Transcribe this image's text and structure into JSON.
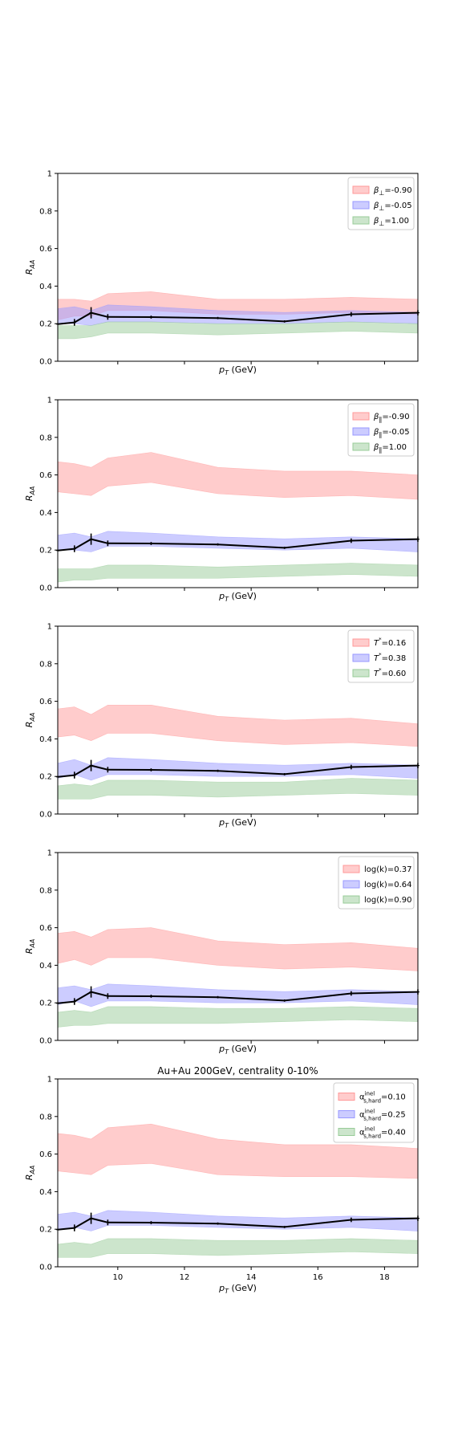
{
  "figure": {
    "title": "Au+Au 200GeV, centrality 0-10%",
    "xlabel": "p_T (GeV)",
    "ylabel": "R_AA"
  },
  "chart_data": [
    {
      "type": "area",
      "xlim": [
        8.2,
        19.0
      ],
      "ylim": [
        0.0,
        1.0
      ],
      "xticks": [
        10,
        12,
        14,
        16,
        18
      ],
      "show_xtick_labels": false,
      "yticks": [
        0.0,
        0.2,
        0.4,
        0.6,
        0.8,
        1.0
      ],
      "xlabel": "p_T (GeV)",
      "ylabel": "R_AA",
      "title": "",
      "legend": "top-right",
      "x": [
        8.2,
        8.7,
        9.2,
        9.7,
        11.0,
        13.0,
        15.0,
        17.0,
        19.0
      ],
      "data": {
        "name": "",
        "y": [
          0.198,
          0.207,
          0.258,
          0.236,
          0.235,
          0.23,
          0.212,
          0.25,
          0.258
        ],
        "yerr": [
          0.003,
          0.018,
          0.03,
          0.015,
          0.008,
          0.006,
          0.006,
          0.012,
          0.014
        ]
      },
      "series": [
        {
          "name": "β⊥=-0.90",
          "color": "#ff9999",
          "low": [
            0.22,
            0.24,
            0.24,
            0.27,
            0.27,
            0.25,
            0.25,
            0.26,
            0.25
          ],
          "high": [
            0.33,
            0.33,
            0.32,
            0.36,
            0.37,
            0.33,
            0.33,
            0.34,
            0.33
          ]
        },
        {
          "name": "β⊥=-0.05",
          "color": "#9999ff",
          "low": [
            0.2,
            0.2,
            0.19,
            0.21,
            0.21,
            0.2,
            0.2,
            0.21,
            0.2
          ],
          "high": [
            0.28,
            0.29,
            0.27,
            0.3,
            0.29,
            0.27,
            0.26,
            0.27,
            0.26
          ]
        },
        {
          "name": "β⊥=1.00",
          "color": "#99cc99",
          "low": [
            0.12,
            0.12,
            0.13,
            0.15,
            0.15,
            0.14,
            0.15,
            0.16,
            0.15
          ],
          "high": [
            0.19,
            0.19,
            0.19,
            0.21,
            0.21,
            0.2,
            0.2,
            0.21,
            0.2
          ]
        }
      ]
    },
    {
      "type": "area",
      "xlim": [
        8.2,
        19.0
      ],
      "ylim": [
        0.0,
        1.0
      ],
      "xticks": [
        10,
        12,
        14,
        16,
        18
      ],
      "show_xtick_labels": false,
      "yticks": [
        0.0,
        0.2,
        0.4,
        0.6,
        0.8,
        1.0
      ],
      "xlabel": "p_T (GeV)",
      "ylabel": "R_AA",
      "title": "",
      "legend": "top-right",
      "x": [
        8.2,
        8.7,
        9.2,
        9.7,
        11.0,
        13.0,
        15.0,
        17.0,
        19.0
      ],
      "data": {
        "name": "",
        "y": [
          0.198,
          0.207,
          0.258,
          0.236,
          0.235,
          0.23,
          0.212,
          0.25,
          0.258
        ],
        "yerr": [
          0.003,
          0.018,
          0.03,
          0.015,
          0.008,
          0.006,
          0.006,
          0.012,
          0.014
        ]
      },
      "series": [
        {
          "name": "β∥=-0.90",
          "color": "#ff9999",
          "low": [
            0.51,
            0.5,
            0.49,
            0.54,
            0.56,
            0.5,
            0.48,
            0.49,
            0.47
          ],
          "high": [
            0.67,
            0.66,
            0.64,
            0.69,
            0.72,
            0.64,
            0.62,
            0.62,
            0.6
          ]
        },
        {
          "name": "β∥=-0.05",
          "color": "#9999ff",
          "low": [
            0.2,
            0.2,
            0.19,
            0.22,
            0.22,
            0.21,
            0.2,
            0.21,
            0.19
          ],
          "high": [
            0.28,
            0.29,
            0.27,
            0.3,
            0.29,
            0.27,
            0.26,
            0.27,
            0.26
          ]
        },
        {
          "name": "β∥=1.00",
          "color": "#99cc99",
          "low": [
            0.03,
            0.04,
            0.04,
            0.05,
            0.05,
            0.05,
            0.06,
            0.07,
            0.06
          ],
          "high": [
            0.1,
            0.1,
            0.1,
            0.12,
            0.12,
            0.11,
            0.12,
            0.13,
            0.12
          ]
        }
      ]
    },
    {
      "type": "area",
      "xlim": [
        8.2,
        19.0
      ],
      "ylim": [
        0.0,
        1.0
      ],
      "xticks": [
        10,
        12,
        14,
        16,
        18
      ],
      "show_xtick_labels": false,
      "yticks": [
        0.0,
        0.2,
        0.4,
        0.6,
        0.8,
        1.0
      ],
      "xlabel": "p_T (GeV)",
      "ylabel": "R_AA",
      "title": "",
      "legend": "top-right",
      "x": [
        8.2,
        8.7,
        9.2,
        9.7,
        11.0,
        13.0,
        15.0,
        17.0,
        19.0
      ],
      "data": {
        "name": "",
        "y": [
          0.198,
          0.207,
          0.258,
          0.236,
          0.235,
          0.23,
          0.212,
          0.25,
          0.258
        ],
        "yerr": [
          0.003,
          0.018,
          0.03,
          0.015,
          0.008,
          0.006,
          0.006,
          0.012,
          0.014
        ]
      },
      "series": [
        {
          "name": "T*=0.16",
          "color": "#ff9999",
          "low": [
            0.41,
            0.42,
            0.39,
            0.43,
            0.43,
            0.39,
            0.37,
            0.38,
            0.36
          ],
          "high": [
            0.56,
            0.57,
            0.53,
            0.58,
            0.58,
            0.52,
            0.5,
            0.51,
            0.48
          ]
        },
        {
          "name": "T*=0.38",
          "color": "#9999ff",
          "low": [
            0.19,
            0.21,
            0.18,
            0.21,
            0.21,
            0.2,
            0.2,
            0.21,
            0.19
          ],
          "high": [
            0.27,
            0.29,
            0.26,
            0.3,
            0.29,
            0.27,
            0.26,
            0.27,
            0.26
          ]
        },
        {
          "name": "T*=0.60",
          "color": "#99cc99",
          "low": [
            0.08,
            0.08,
            0.08,
            0.1,
            0.1,
            0.09,
            0.1,
            0.11,
            0.1
          ],
          "high": [
            0.15,
            0.16,
            0.15,
            0.18,
            0.18,
            0.17,
            0.17,
            0.19,
            0.18
          ]
        }
      ]
    },
    {
      "type": "area",
      "xlim": [
        8.2,
        19.0
      ],
      "ylim": [
        0.0,
        1.0
      ],
      "xticks": [
        10,
        12,
        14,
        16,
        18
      ],
      "show_xtick_labels": false,
      "yticks": [
        0.0,
        0.2,
        0.4,
        0.6,
        0.8,
        1.0
      ],
      "xlabel": "p_T (GeV)",
      "ylabel": "R_AA",
      "title": "",
      "legend": "top-right",
      "x": [
        8.2,
        8.7,
        9.2,
        9.7,
        11.0,
        13.0,
        15.0,
        17.0,
        19.0
      ],
      "data": {
        "name": "",
        "y": [
          0.198,
          0.207,
          0.258,
          0.236,
          0.235,
          0.23,
          0.212,
          0.25,
          0.258
        ],
        "yerr": [
          0.003,
          0.018,
          0.03,
          0.015,
          0.008,
          0.006,
          0.006,
          0.012,
          0.014
        ]
      },
      "series": [
        {
          "name": "log(k)=0.37",
          "color": "#ff9999",
          "low": [
            0.41,
            0.43,
            0.4,
            0.44,
            0.44,
            0.4,
            0.38,
            0.39,
            0.37
          ],
          "high": [
            0.57,
            0.58,
            0.55,
            0.59,
            0.6,
            0.53,
            0.51,
            0.52,
            0.49
          ]
        },
        {
          "name": "log(k)=0.64",
          "color": "#9999ff",
          "low": [
            0.19,
            0.21,
            0.18,
            0.21,
            0.21,
            0.2,
            0.2,
            0.21,
            0.19
          ],
          "high": [
            0.28,
            0.29,
            0.27,
            0.3,
            0.29,
            0.27,
            0.26,
            0.27,
            0.26
          ]
        },
        {
          "name": "log(k)=0.90",
          "color": "#99cc99",
          "low": [
            0.07,
            0.08,
            0.08,
            0.09,
            0.09,
            0.09,
            0.1,
            0.11,
            0.1
          ],
          "high": [
            0.15,
            0.16,
            0.15,
            0.18,
            0.18,
            0.17,
            0.17,
            0.18,
            0.17
          ]
        }
      ]
    },
    {
      "type": "area",
      "xlim": [
        8.2,
        19.0
      ],
      "ylim": [
        0.0,
        1.0
      ],
      "xticks": [
        10,
        12,
        14,
        16,
        18
      ],
      "show_xtick_labels": true,
      "yticks": [
        0.0,
        0.2,
        0.4,
        0.6,
        0.8,
        1.0
      ],
      "xlabel": "p_T (GeV)",
      "ylabel": "R_AA",
      "title": "Au+Au 200GeV, centrality 0-10%",
      "legend": "top-right",
      "x": [
        8.2,
        8.7,
        9.2,
        9.7,
        11.0,
        13.0,
        15.0,
        17.0,
        19.0
      ],
      "data": {
        "name": "",
        "y": [
          0.198,
          0.207,
          0.258,
          0.236,
          0.235,
          0.23,
          0.212,
          0.25,
          0.258
        ],
        "yerr": [
          0.003,
          0.018,
          0.03,
          0.015,
          0.008,
          0.006,
          0.006,
          0.012,
          0.014
        ]
      },
      "series": [
        {
          "name": "α_s,hard^inel=0.10",
          "color": "#ff9999",
          "low": [
            0.51,
            0.5,
            0.49,
            0.54,
            0.55,
            0.49,
            0.48,
            0.48,
            0.47
          ],
          "high": [
            0.71,
            0.7,
            0.68,
            0.74,
            0.76,
            0.68,
            0.65,
            0.65,
            0.63
          ]
        },
        {
          "name": "α_s,hard^inel=0.25",
          "color": "#9999ff",
          "low": [
            0.2,
            0.21,
            0.19,
            0.22,
            0.22,
            0.21,
            0.2,
            0.21,
            0.19
          ],
          "high": [
            0.28,
            0.29,
            0.27,
            0.3,
            0.29,
            0.27,
            0.26,
            0.27,
            0.26
          ]
        },
        {
          "name": "α_s,hard^inel=0.40",
          "color": "#99cc99",
          "low": [
            0.05,
            0.05,
            0.05,
            0.07,
            0.07,
            0.06,
            0.07,
            0.08,
            0.07
          ],
          "high": [
            0.12,
            0.13,
            0.12,
            0.15,
            0.15,
            0.14,
            0.14,
            0.15,
            0.14
          ]
        }
      ]
    }
  ]
}
